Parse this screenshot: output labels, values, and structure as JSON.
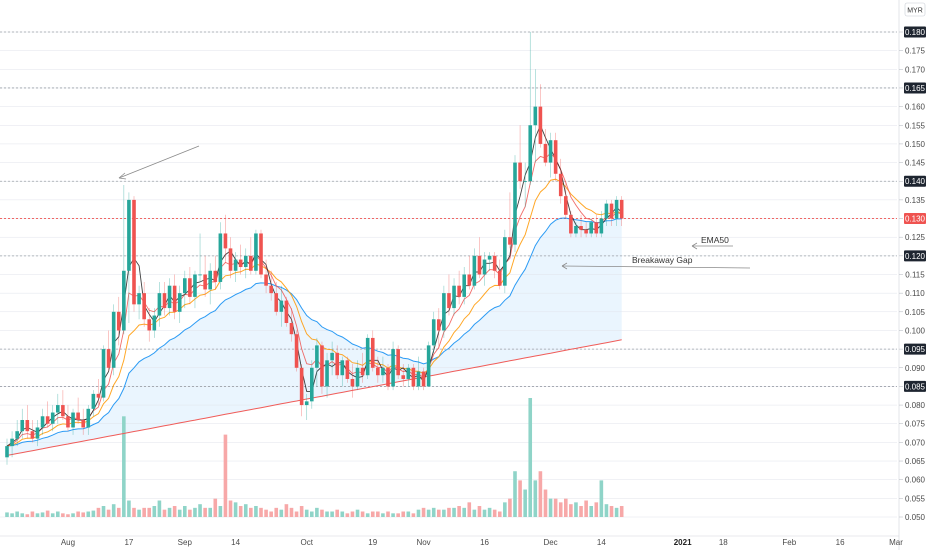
{
  "chart_data": {
    "type": "candlestick",
    "currency": "MYR",
    "ylim": [
      0.045,
      0.185
    ],
    "y_ticks": [
      "0.180",
      "0.175",
      "0.170",
      "0.165",
      "0.160",
      "0.155",
      "0.150",
      "0.145",
      "0.140",
      "0.135",
      "0.130",
      "0.125",
      "0.120",
      "0.115",
      "0.110",
      "0.105",
      "0.100",
      "0.095",
      "0.090",
      "0.085",
      "0.080",
      "0.075",
      "0.070",
      "0.065",
      "0.060",
      "0.055",
      "0.050"
    ],
    "y_tick_values": [
      0.18,
      0.175,
      0.17,
      0.165,
      0.16,
      0.155,
      0.15,
      0.145,
      0.14,
      0.135,
      0.13,
      0.125,
      0.12,
      0.115,
      0.11,
      0.105,
      0.1,
      0.095,
      0.09,
      0.085,
      0.08,
      0.075,
      0.07,
      0.065,
      0.06,
      0.055,
      0.05
    ],
    "x_ticks": [
      {
        "label": "Aug",
        "index": 12,
        "bold": false
      },
      {
        "label": "17",
        "index": 24,
        "bold": false
      },
      {
        "label": "Sep",
        "index": 35,
        "bold": false
      },
      {
        "label": "14",
        "index": 45,
        "bold": false
      },
      {
        "label": "Oct",
        "index": 59,
        "bold": false
      },
      {
        "label": "19",
        "index": 72,
        "bold": false
      },
      {
        "label": "Nov",
        "index": 82,
        "bold": false
      },
      {
        "label": "16",
        "index": 94,
        "bold": false
      },
      {
        "label": "Dec",
        "index": 107,
        "bold": false
      },
      {
        "label": "14",
        "index": 117,
        "bold": false
      },
      {
        "label": "2021",
        "index": 133,
        "bold": true
      },
      {
        "label": "18",
        "index": 141,
        "bold": false
      },
      {
        "label": "Feb",
        "index": 154,
        "bold": false
      },
      {
        "label": "16",
        "index": 164,
        "bold": false
      },
      {
        "label": "Mar",
        "index": 175,
        "bold": false
      }
    ],
    "horizontal_levels": [
      {
        "value": 0.18,
        "label": "0.180",
        "color": "#1e2530"
      },
      {
        "value": 0.165,
        "label": "0.165",
        "color": "#1e2530"
      },
      {
        "value": 0.14,
        "label": "0.140",
        "color": "#1e2530"
      },
      {
        "value": 0.13,
        "label": "0.130",
        "color": "#ef5350"
      },
      {
        "value": 0.12,
        "label": "0.120",
        "color": "#1e2530"
      },
      {
        "value": 0.095,
        "label": "0.095",
        "color": "#1e2530"
      },
      {
        "value": 0.085,
        "label": "0.085",
        "color": "#1e2530"
      }
    ],
    "candles": [
      [
        0.066,
        0.071,
        0.064,
        0.069
      ],
      [
        0.069,
        0.073,
        0.066,
        0.071
      ],
      [
        0.071,
        0.076,
        0.069,
        0.073
      ],
      [
        0.073,
        0.079,
        0.071,
        0.076
      ],
      [
        0.076,
        0.08,
        0.071,
        0.073
      ],
      [
        0.073,
        0.076,
        0.07,
        0.071
      ],
      [
        0.071,
        0.076,
        0.069,
        0.074
      ],
      [
        0.074,
        0.079,
        0.072,
        0.077
      ],
      [
        0.077,
        0.081,
        0.074,
        0.075
      ],
      [
        0.075,
        0.08,
        0.073,
        0.078
      ],
      [
        0.078,
        0.083,
        0.075,
        0.08
      ],
      [
        0.08,
        0.084,
        0.076,
        0.077
      ],
      [
        0.077,
        0.08,
        0.073,
        0.074
      ],
      [
        0.074,
        0.079,
        0.072,
        0.078
      ],
      [
        0.078,
        0.082,
        0.075,
        0.076
      ],
      [
        0.076,
        0.079,
        0.072,
        0.074
      ],
      [
        0.074,
        0.08,
        0.072,
        0.079
      ],
      [
        0.079,
        0.084,
        0.077,
        0.083
      ],
      [
        0.083,
        0.087,
        0.08,
        0.082
      ],
      [
        0.082,
        0.096,
        0.081,
        0.095
      ],
      [
        0.095,
        0.1,
        0.089,
        0.09
      ],
      [
        0.09,
        0.107,
        0.088,
        0.105
      ],
      [
        0.105,
        0.109,
        0.096,
        0.1
      ],
      [
        0.1,
        0.139,
        0.099,
        0.116
      ],
      [
        0.116,
        0.137,
        0.102,
        0.135
      ],
      [
        0.135,
        0.136,
        0.105,
        0.107
      ],
      [
        0.107,
        0.112,
        0.103,
        0.11
      ],
      [
        0.11,
        0.113,
        0.101,
        0.103
      ],
      [
        0.103,
        0.106,
        0.097,
        0.1
      ],
      [
        0.1,
        0.106,
        0.098,
        0.104
      ],
      [
        0.104,
        0.113,
        0.101,
        0.11
      ],
      [
        0.11,
        0.113,
        0.104,
        0.106
      ],
      [
        0.106,
        0.114,
        0.104,
        0.112
      ],
      [
        0.112,
        0.115,
        0.103,
        0.105
      ],
      [
        0.105,
        0.112,
        0.102,
        0.11
      ],
      [
        0.11,
        0.116,
        0.106,
        0.114
      ],
      [
        0.114,
        0.117,
        0.107,
        0.109
      ],
      [
        0.109,
        0.116,
        0.106,
        0.115
      ],
      [
        0.115,
        0.126,
        0.113,
        0.115
      ],
      [
        0.115,
        0.12,
        0.109,
        0.111
      ],
      [
        0.111,
        0.118,
        0.107,
        0.116
      ],
      [
        0.116,
        0.12,
        0.111,
        0.113
      ],
      [
        0.113,
        0.129,
        0.111,
        0.126
      ],
      [
        0.126,
        0.131,
        0.118,
        0.122
      ],
      [
        0.122,
        0.125,
        0.114,
        0.116
      ],
      [
        0.116,
        0.121,
        0.113,
        0.119
      ],
      [
        0.119,
        0.123,
        0.115,
        0.117
      ],
      [
        0.117,
        0.122,
        0.114,
        0.12
      ],
      [
        0.12,
        0.125,
        0.115,
        0.116
      ],
      [
        0.116,
        0.127,
        0.115,
        0.126
      ],
      [
        0.126,
        0.127,
        0.114,
        0.115
      ],
      [
        0.115,
        0.119,
        0.11,
        0.112
      ],
      [
        0.112,
        0.116,
        0.108,
        0.11
      ],
      [
        0.11,
        0.113,
        0.104,
        0.105
      ],
      [
        0.105,
        0.112,
        0.101,
        0.108
      ],
      [
        0.108,
        0.109,
        0.101,
        0.102
      ],
      [
        0.102,
        0.106,
        0.097,
        0.099
      ],
      [
        0.099,
        0.1,
        0.089,
        0.09
      ],
      [
        0.09,
        0.091,
        0.077,
        0.08
      ],
      [
        0.08,
        0.083,
        0.076,
        0.081
      ],
      [
        0.081,
        0.092,
        0.079,
        0.09
      ],
      [
        0.09,
        0.098,
        0.085,
        0.096
      ],
      [
        0.096,
        0.097,
        0.083,
        0.085
      ],
      [
        0.085,
        0.094,
        0.082,
        0.092
      ],
      [
        0.092,
        0.097,
        0.088,
        0.094
      ],
      [
        0.094,
        0.096,
        0.087,
        0.088
      ],
      [
        0.088,
        0.093,
        0.085,
        0.092
      ],
      [
        0.092,
        0.093,
        0.086,
        0.087
      ],
      [
        0.087,
        0.091,
        0.082,
        0.085
      ],
      [
        0.085,
        0.092,
        0.084,
        0.09
      ],
      [
        0.09,
        0.094,
        0.086,
        0.088
      ],
      [
        0.088,
        0.099,
        0.087,
        0.098
      ],
      [
        0.098,
        0.1,
        0.089,
        0.09
      ],
      [
        0.09,
        0.093,
        0.086,
        0.088
      ],
      [
        0.088,
        0.093,
        0.086,
        0.09
      ],
      [
        0.09,
        0.091,
        0.084,
        0.085
      ],
      [
        0.085,
        0.097,
        0.084,
        0.095
      ],
      [
        0.095,
        0.096,
        0.087,
        0.088
      ],
      [
        0.088,
        0.091,
        0.085,
        0.087
      ],
      [
        0.087,
        0.091,
        0.085,
        0.09
      ],
      [
        0.09,
        0.091,
        0.084,
        0.085
      ],
      [
        0.085,
        0.093,
        0.084,
        0.089
      ],
      [
        0.089,
        0.09,
        0.084,
        0.085
      ],
      [
        0.085,
        0.097,
        0.085,
        0.096
      ],
      [
        0.096,
        0.105,
        0.094,
        0.103
      ],
      [
        0.103,
        0.106,
        0.095,
        0.1
      ],
      [
        0.1,
        0.112,
        0.098,
        0.11
      ],
      [
        0.11,
        0.115,
        0.104,
        0.106
      ],
      [
        0.106,
        0.114,
        0.104,
        0.112
      ],
      [
        0.112,
        0.116,
        0.107,
        0.109
      ],
      [
        0.109,
        0.117,
        0.107,
        0.115
      ],
      [
        0.115,
        0.12,
        0.111,
        0.112
      ],
      [
        0.112,
        0.122,
        0.111,
        0.12
      ],
      [
        0.12,
        0.125,
        0.114,
        0.115
      ],
      [
        0.115,
        0.121,
        0.112,
        0.119
      ],
      [
        0.119,
        0.121,
        0.116,
        0.12
      ],
      [
        0.12,
        0.121,
        0.114,
        0.116
      ],
      [
        0.116,
        0.119,
        0.111,
        0.112
      ],
      [
        0.112,
        0.127,
        0.11,
        0.125
      ],
      [
        0.125,
        0.137,
        0.122,
        0.123
      ],
      [
        0.123,
        0.147,
        0.121,
        0.145
      ],
      [
        0.145,
        0.155,
        0.138,
        0.14
      ],
      [
        0.14,
        0.145,
        0.133,
        0.14
      ],
      [
        0.14,
        0.18,
        0.139,
        0.155
      ],
      [
        0.155,
        0.17,
        0.145,
        0.16
      ],
      [
        0.16,
        0.166,
        0.149,
        0.15
      ],
      [
        0.15,
        0.154,
        0.144,
        0.145
      ],
      [
        0.145,
        0.153,
        0.141,
        0.151
      ],
      [
        0.151,
        0.153,
        0.14,
        0.142
      ],
      [
        0.142,
        0.146,
        0.134,
        0.136
      ],
      [
        0.136,
        0.14,
        0.13,
        0.131
      ],
      [
        0.131,
        0.132,
        0.125,
        0.126
      ],
      [
        0.126,
        0.129,
        0.125,
        0.128
      ],
      [
        0.128,
        0.131,
        0.125,
        0.127
      ],
      [
        0.127,
        0.129,
        0.125,
        0.126
      ],
      [
        0.126,
        0.13,
        0.125,
        0.129
      ],
      [
        0.129,
        0.131,
        0.125,
        0.126
      ],
      [
        0.126,
        0.132,
        0.125,
        0.13
      ],
      [
        0.13,
        0.135,
        0.128,
        0.134
      ],
      [
        0.134,
        0.135,
        0.128,
        0.13
      ],
      [
        0.13,
        0.136,
        0.128,
        0.135
      ],
      [
        0.135,
        0.136,
        0.128,
        0.13
      ]
    ],
    "volumes": [
      0.25,
      0.2,
      0.3,
      0.2,
      0.15,
      0.3,
      0.2,
      0.25,
      0.35,
      0.2,
      0.3,
      0.2,
      0.15,
      0.2,
      0.3,
      0.25,
      0.3,
      0.35,
      0.5,
      0.6,
      0.4,
      0.7,
      0.5,
      5.5,
      0.9,
      0.5,
      0.4,
      0.5,
      0.5,
      0.6,
      0.9,
      0.4,
      0.5,
      0.6,
      0.4,
      0.6,
      0.4,
      0.5,
      0.7,
      0.5,
      0.5,
      1.0,
      0.6,
      4.5,
      0.9,
      0.8,
      0.6,
      0.7,
      0.5,
      0.6,
      0.5,
      0.4,
      0.3,
      0.5,
      0.4,
      0.7,
      0.5,
      0.3,
      0.6,
      0.4,
      0.3,
      0.5,
      0.4,
      0.3,
      0.3,
      0.4,
      0.3,
      0.2,
      0.3,
      0.4,
      0.3,
      0.2,
      0.3,
      0.3,
      0.2,
      0.3,
      0.2,
      0.2,
      0.3,
      0.3,
      0.2,
      0.4,
      0.5,
      0.4,
      0.5,
      0.4,
      0.4,
      0.5,
      0.5,
      0.6,
      0.5,
      0.8,
      0.4,
      0.6,
      0.4,
      0.5,
      0.4,
      0.3,
      0.8,
      1.0,
      2.5,
      2.0,
      1.5,
      6.5,
      2.0,
      2.5,
      1.5,
      1.0,
      1.0,
      0.8,
      1.0,
      0.7,
      0.8,
      0.6,
      0.9,
      0.6,
      0.8,
      2.0,
      0.7,
      0.6,
      0.5,
      0.6
    ],
    "volume_max": 6.5,
    "annotations": [
      {
        "text": "EMA50",
        "kind": "label"
      },
      {
        "text": "Breakaway Gap",
        "kind": "label"
      }
    ],
    "colors": {
      "up": "#26a69a",
      "down": "#ef5350",
      "up_volume": "#8fd4c8",
      "down_volume": "#f7a8a8",
      "sma_short": "#1e1e1e",
      "ema_fast": "#ef5350",
      "ema_mid": "#ff9800",
      "ema50": "#2196f3",
      "ema200": "#ef5350",
      "ribbon": "#e3f2fd",
      "grid": "#e0e3eb",
      "axis_text": "#4a4a4a",
      "badge": "#1e2530",
      "annotation": "#555555"
    },
    "grid": true
  }
}
